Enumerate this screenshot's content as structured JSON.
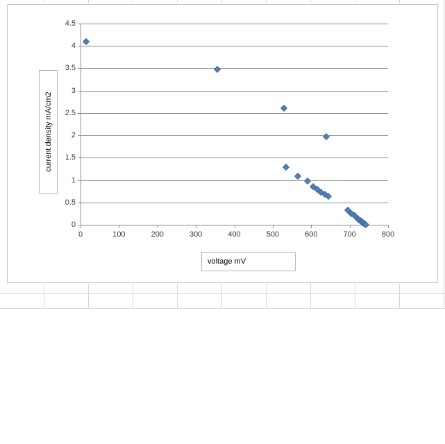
{
  "chart_data": {
    "type": "scatter",
    "title": "",
    "xlabel": "voltage mV",
    "ylabel": "current density mA/cm2",
    "xlim": [
      0,
      800
    ],
    "ylim": [
      0,
      4.5
    ],
    "x_ticks": [
      0,
      100,
      200,
      300,
      400,
      500,
      600,
      700,
      800
    ],
    "y_ticks": [
      0,
      0.5,
      1,
      1.5,
      2,
      2.5,
      3,
      3.5,
      4,
      4.5
    ],
    "grid": "horizontal",
    "legend": false,
    "marker": "diamond",
    "marker_color": "#4F81BD",
    "points": [
      [
        15,
        4.1
      ],
      [
        355,
        3.48
      ],
      [
        530,
        2.61
      ],
      [
        640,
        1.97
      ],
      [
        535,
        1.29
      ],
      [
        565,
        1.08
      ],
      [
        590,
        0.97
      ],
      [
        605,
        0.86
      ],
      [
        615,
        0.79
      ],
      [
        625,
        0.73
      ],
      [
        635,
        0.68
      ],
      [
        645,
        0.64
      ],
      [
        695,
        0.33
      ],
      [
        705,
        0.25
      ],
      [
        712,
        0.21
      ],
      [
        717,
        0.17
      ],
      [
        721,
        0.14
      ],
      [
        725,
        0.11
      ],
      [
        728,
        0.09
      ],
      [
        731,
        0.07
      ],
      [
        734,
        0.05
      ],
      [
        737,
        0.03
      ],
      [
        740,
        0.01
      ],
      [
        743,
        0.0
      ]
    ]
  }
}
